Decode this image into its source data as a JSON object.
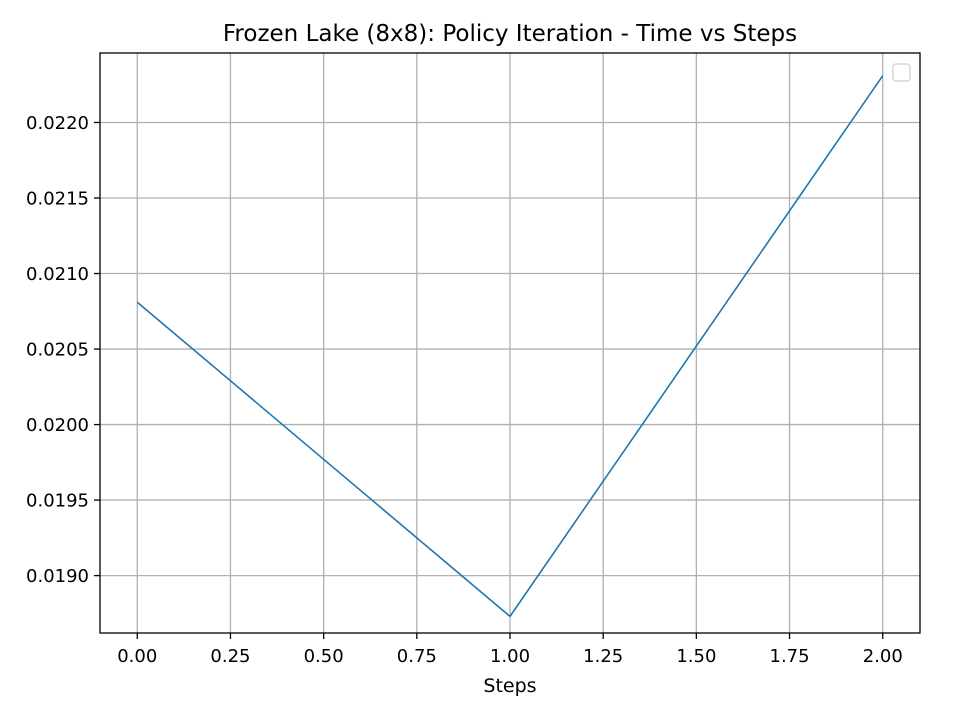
{
  "chart_data": {
    "type": "line",
    "title": "Frozen Lake (8x8): Policy Iteration - Time vs Steps",
    "xlabel": "Steps",
    "ylabel": "",
    "xlim": [
      -0.1,
      2.1
    ],
    "ylim": [
      0.01862,
      0.02246
    ],
    "x_ticks": [
      0.0,
      0.25,
      0.5,
      0.75,
      1.0,
      1.25,
      1.5,
      1.75,
      2.0
    ],
    "x_tick_labels": [
      "0.00",
      "0.25",
      "0.50",
      "0.75",
      "1.00",
      "1.25",
      "1.50",
      "1.75",
      "2.00"
    ],
    "y_ticks": [
      0.019,
      0.0195,
      0.02,
      0.0205,
      0.021,
      0.0215,
      0.022
    ],
    "y_tick_labels": [
      "0.0190",
      "0.0195",
      "0.0200",
      "0.0205",
      "0.0210",
      "0.0215",
      "0.0220"
    ],
    "grid": true,
    "legend": "upper-right, empty",
    "series": [
      {
        "x": [
          0,
          1,
          2
        ],
        "y": [
          0.02081,
          0.01873,
          0.02231
        ],
        "color": "#1f77b4"
      }
    ],
    "colors": {
      "line": "#1f77b4",
      "grid": "#b0b0b0",
      "axes": "#000000",
      "legend_border": "#cccccc"
    }
  }
}
